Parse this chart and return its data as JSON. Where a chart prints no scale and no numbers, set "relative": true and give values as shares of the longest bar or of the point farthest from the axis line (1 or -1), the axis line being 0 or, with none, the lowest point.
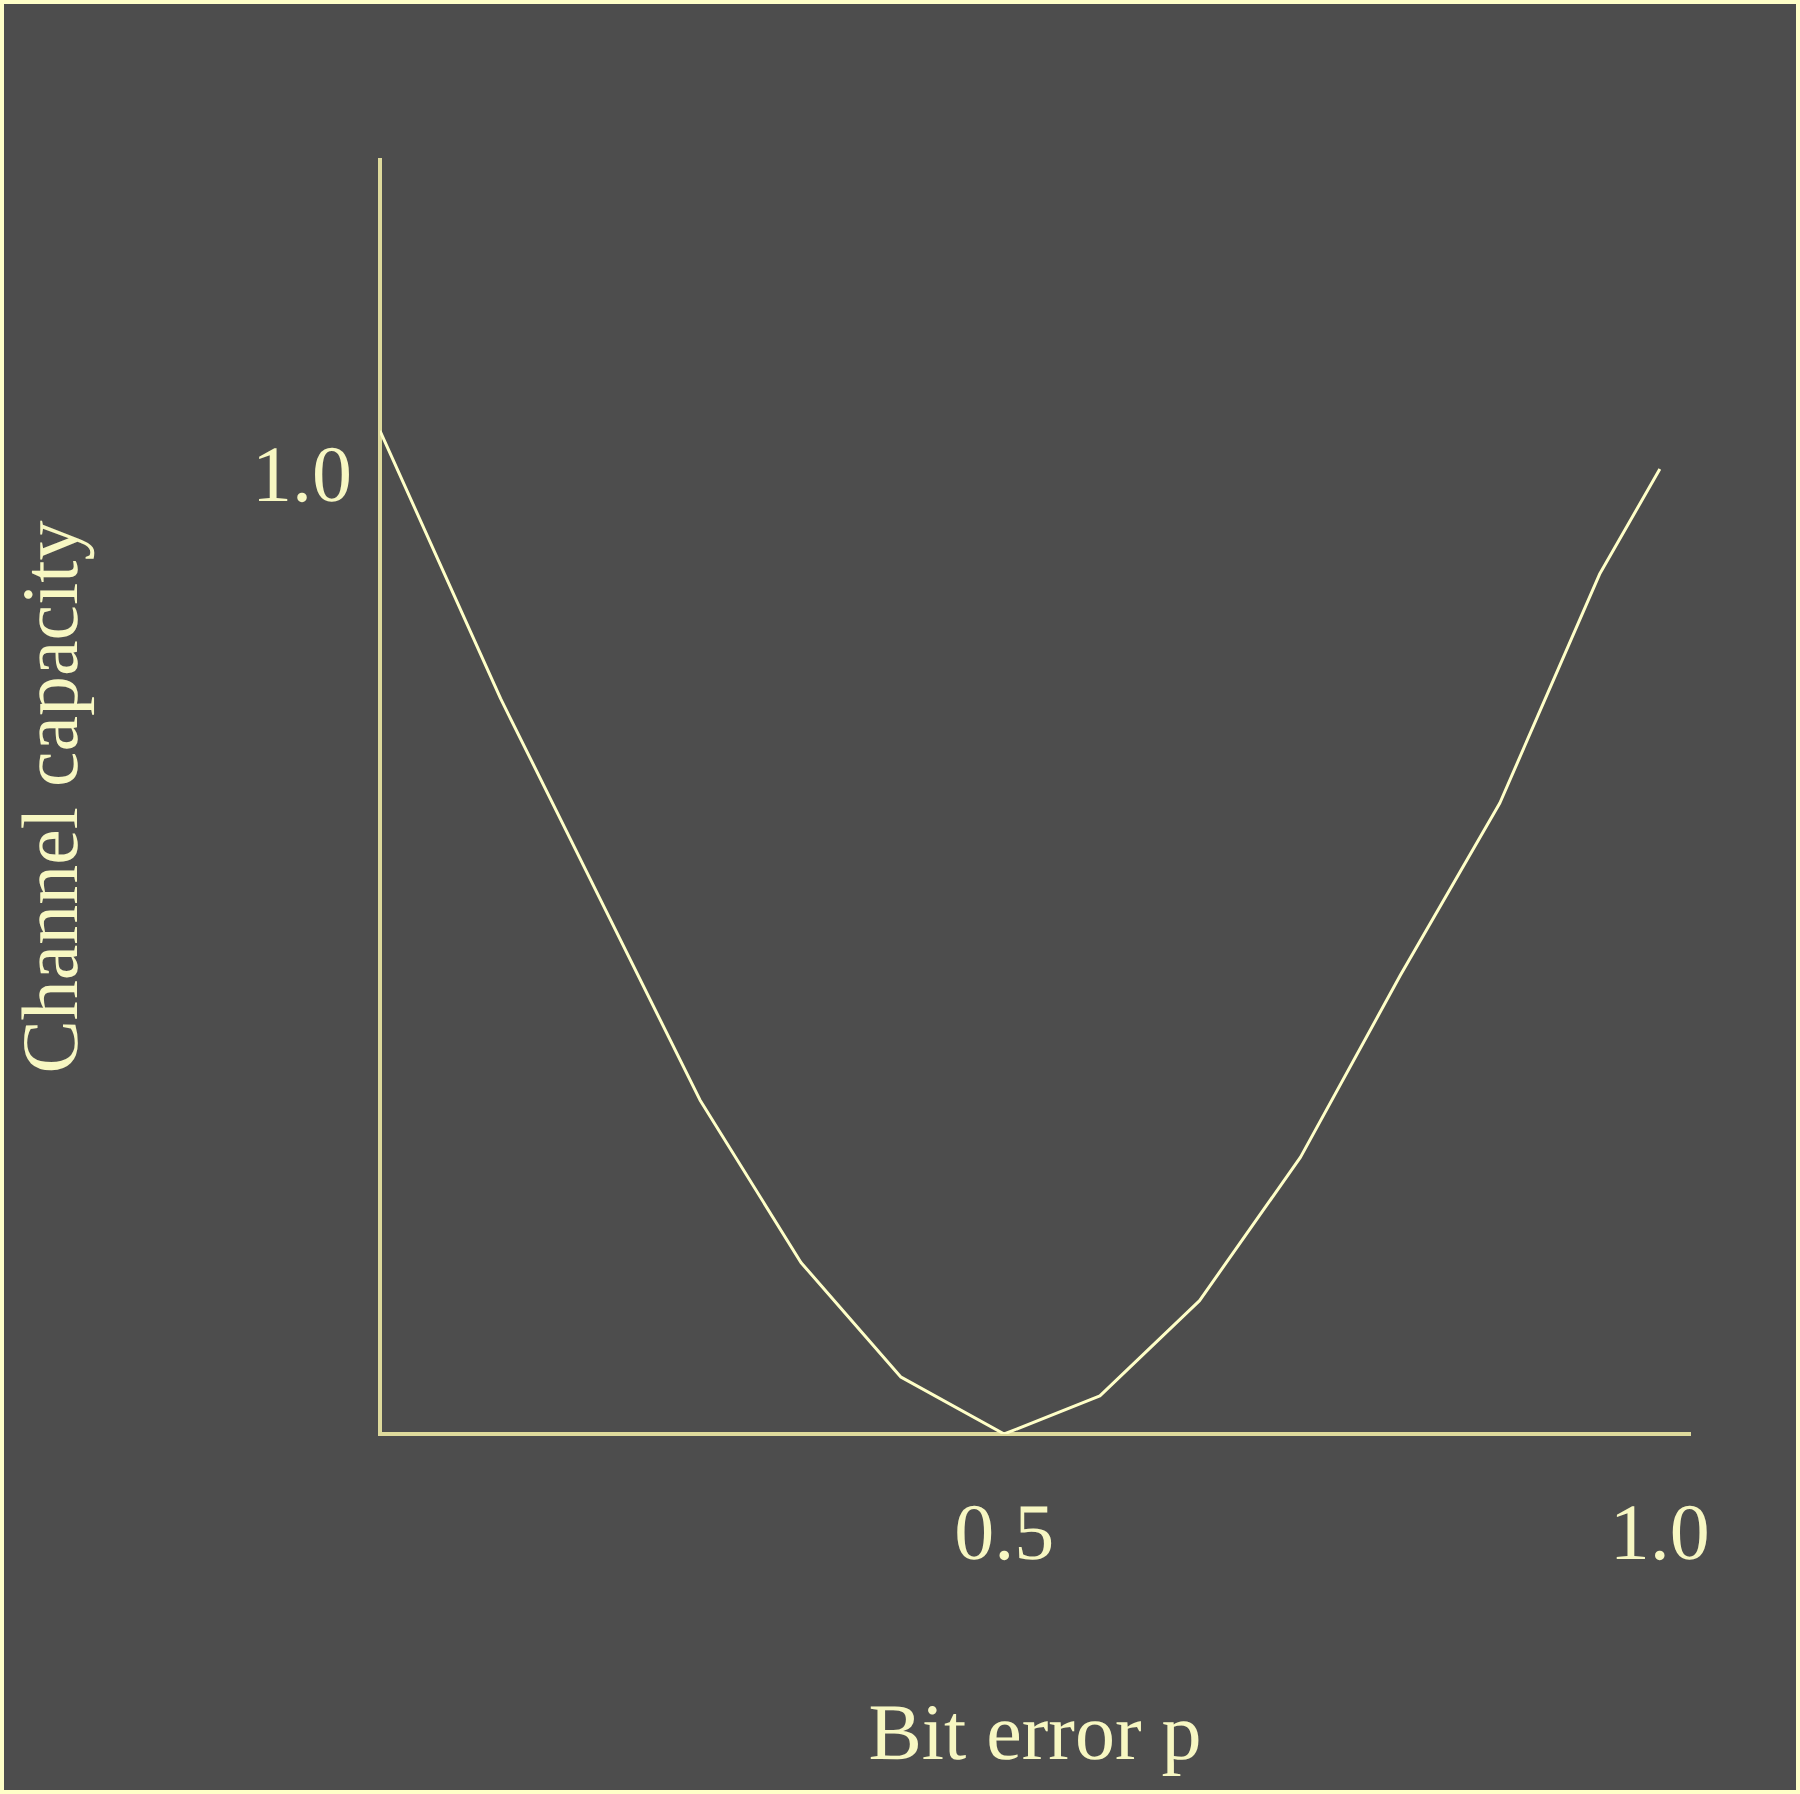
{
  "chart_data": {
    "type": "line",
    "xlabel": "Bit error p",
    "ylabel": "Channel capacity",
    "relative": true,
    "x": [
      0.024,
      0.116,
      0.192,
      0.268,
      0.345,
      0.421,
      0.5,
      0.573,
      0.649,
      0.726,
      0.802,
      0.878,
      0.954,
      1.0
    ],
    "series": [
      {
        "color": "#ffffc8",
        "values": [
          1,
          0.733,
          0.533,
          0.333,
          0.171,
          0.057,
          0,
          0.038,
          0.133,
          0.276,
          0.457,
          0.629,
          0.857,
          0.962
        ]
      }
    ],
    "xlim": [
      0.024,
      1.023
    ],
    "xticks": [
      0.5,
      {
        "value": 1.0,
        "label": "1.0"
      }
    ],
    "annotations": [
      "1.0"
    ],
    "grid": false,
    "legend": false,
    "marker": "none"
  }
}
